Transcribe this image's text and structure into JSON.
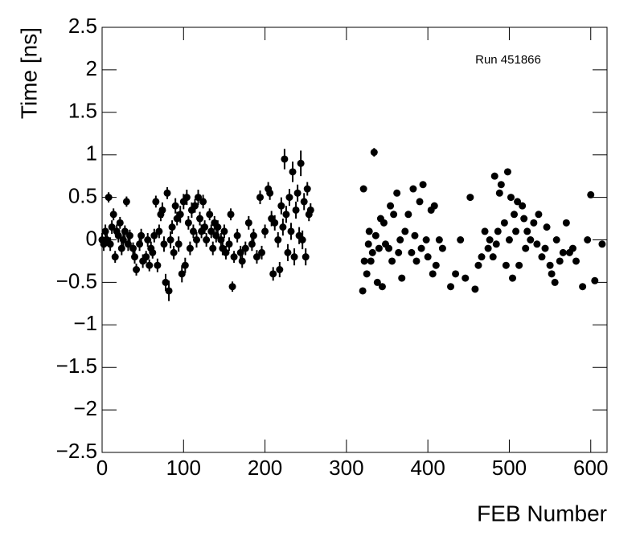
{
  "chart_data": {
    "type": "scatter",
    "annotation": "Run 451866",
    "x_label": "FEB Number",
    "y_label": "Time [ns]",
    "xlim": [
      0,
      620
    ],
    "xticks": [
      0,
      100,
      200,
      300,
      400,
      500,
      600
    ],
    "ylim": [
      -2.5,
      2.5
    ],
    "yticks": [
      {
        "value": -2.5,
        "label": "−2.5"
      },
      {
        "value": -2,
        "label": "−2"
      },
      {
        "value": -1.5,
        "label": "−1.5"
      },
      {
        "value": -1,
        "label": "−1"
      },
      {
        "value": -0.5,
        "label": "−0.5"
      },
      0,
      0.5,
      1,
      1.5,
      2,
      2.5
    ],
    "series": [
      {
        "color": "#000000",
        "x": [
          0,
          2,
          4,
          6,
          8,
          10,
          12,
          14,
          16,
          18,
          20,
          22,
          24,
          26,
          28,
          30,
          32,
          34,
          38,
          40,
          42,
          46,
          48,
          50,
          54,
          56,
          58,
          60,
          62,
          64,
          66,
          68,
          70,
          72,
          74,
          76,
          78,
          80,
          82,
          84,
          86,
          88,
          90,
          92,
          94,
          96,
          98,
          100,
          102,
          104,
          106,
          108,
          110,
          112,
          114,
          116,
          118,
          120,
          122,
          124,
          126,
          128,
          132,
          134,
          136,
          138,
          140,
          142,
          146,
          148,
          150,
          152,
          156,
          158,
          160,
          162,
          166,
          170,
          172,
          176,
          180,
          184,
          186,
          190,
          194,
          196,
          200,
          204,
          206,
          208,
          210,
          212,
          216,
          218,
          220,
          222,
          224,
          226,
          228,
          230,
          232,
          234,
          236,
          238,
          240,
          242,
          244,
          246,
          248,
          250,
          252,
          254,
          256
        ],
        "values": [
          0,
          -0.05,
          0.1,
          0,
          0.5,
          -0.05,
          0.15,
          0.3,
          -0.2,
          0.1,
          0.05,
          0.2,
          -0.1,
          0,
          0.1,
          0.45,
          -0.05,
          0.05,
          -0.1,
          -0.2,
          -0.35,
          -0.05,
          0.05,
          -0.25,
          -0.2,
          0,
          -0.3,
          -0.1,
          -0.15,
          0.05,
          0.45,
          -0.3,
          0.1,
          0.3,
          0.35,
          -0.05,
          -0.5,
          0.55,
          -0.6,
          0,
          0.15,
          -0.15,
          0.4,
          0.25,
          -0.05,
          0.3,
          -0.4,
          0.45,
          -0.3,
          0.5,
          0.2,
          -0.1,
          0.35,
          0.1,
          0.4,
          0,
          0.5,
          0.25,
          0.1,
          0.45,
          0.15,
          0,
          0.3,
          0.1,
          -0.1,
          0.2,
          0.05,
          0.15,
          0,
          -0.1,
          0.1,
          -0.15,
          -0.05,
          0.3,
          -0.55,
          -0.2,
          0.05,
          -0.15,
          -0.25,
          -0.1,
          0.2,
          -0.05,
          0.05,
          -0.2,
          0.5,
          -0.15,
          0.1,
          0.6,
          0.55,
          0.25,
          -0.4,
          0.2,
          0,
          -0.35,
          0.4,
          0.15,
          0.95,
          0.3,
          -0.15,
          0.5,
          0.1,
          0.8,
          -0.2,
          0.35,
          0.55,
          0.05,
          0.9,
          0,
          0.45,
          -0.2,
          0.6,
          0.3,
          0.35
        ],
        "errors": [
          0.08,
          0.08,
          0.08,
          0.07,
          0.06,
          0.08,
          0.08,
          0.07,
          0.07,
          0.08,
          0.08,
          0.07,
          0.08,
          0.08,
          0.07,
          0.06,
          0.08,
          0.07,
          0.07,
          0.08,
          0.07,
          0.08,
          0.08,
          0.08,
          0.07,
          0.08,
          0.07,
          0.08,
          0.07,
          0.08,
          0.07,
          0.08,
          0.08,
          0.08,
          0.09,
          0.09,
          0.1,
          0.07,
          0.12,
          0.1,
          0.08,
          0.08,
          0.09,
          0.08,
          0.09,
          0.1,
          0.1,
          0.09,
          0.09,
          0.09,
          0.08,
          0.08,
          0.09,
          0.08,
          0.08,
          0.09,
          0.09,
          0.08,
          0.08,
          0.08,
          0.08,
          0.08,
          0.07,
          0.08,
          0.08,
          0.08,
          0.08,
          0.08,
          0.08,
          0.08,
          0.08,
          0.08,
          0.08,
          0.07,
          0.06,
          0.07,
          0.08,
          0.08,
          0.08,
          0.08,
          0.08,
          0.08,
          0.08,
          0.08,
          0.08,
          0.08,
          0.08,
          0.08,
          0.08,
          0.09,
          0.08,
          0.09,
          0.09,
          0.09,
          0.1,
          0.1,
          0.12,
          0.1,
          0.1,
          0.1,
          0.1,
          0.12,
          0.1,
          0.1,
          0.1,
          0.1,
          0.15,
          0.11,
          0.1,
          0.1,
          0.08,
          0.08,
          0.08
        ]
      },
      {
        "color": "#000000",
        "x": [
          320,
          321,
          322,
          325,
          327,
          328,
          330,
          332,
          334,
          336,
          338,
          340,
          342,
          344,
          346,
          348,
          352,
          354,
          356,
          358,
          362,
          364,
          366,
          368,
          372,
          376,
          380,
          382,
          384,
          386,
          390,
          392,
          394,
          398,
          400,
          404,
          406,
          408,
          410,
          414,
          418,
          428,
          434,
          440,
          446,
          452,
          458,
          462,
          466,
          470,
          474,
          476,
          480,
          482,
          484,
          486,
          488,
          490,
          494,
          496,
          498,
          500,
          502,
          504,
          506,
          508,
          510,
          512,
          516,
          518,
          520,
          522,
          526,
          530,
          534,
          536,
          540,
          544,
          546,
          550,
          552,
          556,
          558,
          562,
          566,
          570,
          574,
          578,
          582,
          590,
          596,
          600,
          605,
          614
        ],
        "values": [
          -0.6,
          0.6,
          -0.25,
          -0.4,
          -0.05,
          0.1,
          -0.25,
          -0.15,
          1.03,
          0.05,
          -0.5,
          -0.1,
          0.25,
          -0.55,
          0.2,
          -0.05,
          -0.1,
          0.4,
          -0.25,
          0.3,
          0.55,
          -0.15,
          0,
          -0.45,
          0.1,
          0.3,
          -0.15,
          0.6,
          0.05,
          -0.25,
          0.45,
          -0.1,
          0.65,
          0,
          -0.2,
          0.35,
          -0.4,
          0.4,
          -0.3,
          0,
          -0.1,
          -0.55,
          -0.4,
          0,
          -0.45,
          0.5,
          -0.58,
          -0.3,
          -0.2,
          0.1,
          -0.1,
          0,
          -0.2,
          0.75,
          -0.05,
          0.1,
          0.55,
          0.65,
          0.2,
          -0.3,
          0.8,
          0,
          0.5,
          -0.45,
          0.3,
          0.1,
          0.45,
          -0.3,
          0.4,
          0.25,
          -0.1,
          0.1,
          0,
          0.2,
          -0.05,
          0.3,
          -0.2,
          -0.1,
          0.15,
          -0.3,
          -0.4,
          -0.5,
          0,
          -0.25,
          -0.15,
          0.2,
          -0.15,
          -0.1,
          -0.25,
          -0.55,
          0,
          0.53,
          -0.48,
          -0.05
        ],
        "errors": [
          0.03,
          0.03,
          0.03,
          0.03,
          0.03,
          0.03,
          0.03,
          0.03,
          0.05,
          0.03,
          0.03,
          0.03,
          0.03,
          0.03,
          0.03,
          0.03,
          0.03,
          0.03,
          0.03,
          0.03,
          0.03,
          0.03,
          0.03,
          0.03,
          0.03,
          0.03,
          0.03,
          0.03,
          0.03,
          0.03,
          0.03,
          0.03,
          0.03,
          0.03,
          0.03,
          0.03,
          0.03,
          0.03,
          0.03,
          0.03,
          0.03,
          0.03,
          0.03,
          0.03,
          0.03,
          0.03,
          0.03,
          0.03,
          0.03,
          0.03,
          0.03,
          0.03,
          0.03,
          0.03,
          0.03,
          0.03,
          0.03,
          0.03,
          0.03,
          0.03,
          0.03,
          0.03,
          0.03,
          0.03,
          0.03,
          0.03,
          0.03,
          0.03,
          0.03,
          0.03,
          0.03,
          0.03,
          0.03,
          0.03,
          0.03,
          0.03,
          0.03,
          0.03,
          0.03,
          0.03,
          0.03,
          0.03,
          0.03,
          0.03,
          0.03,
          0.03,
          0.03,
          0.03,
          0.03,
          0.03,
          0.03,
          0.03,
          0.03,
          0.03
        ]
      }
    ]
  }
}
